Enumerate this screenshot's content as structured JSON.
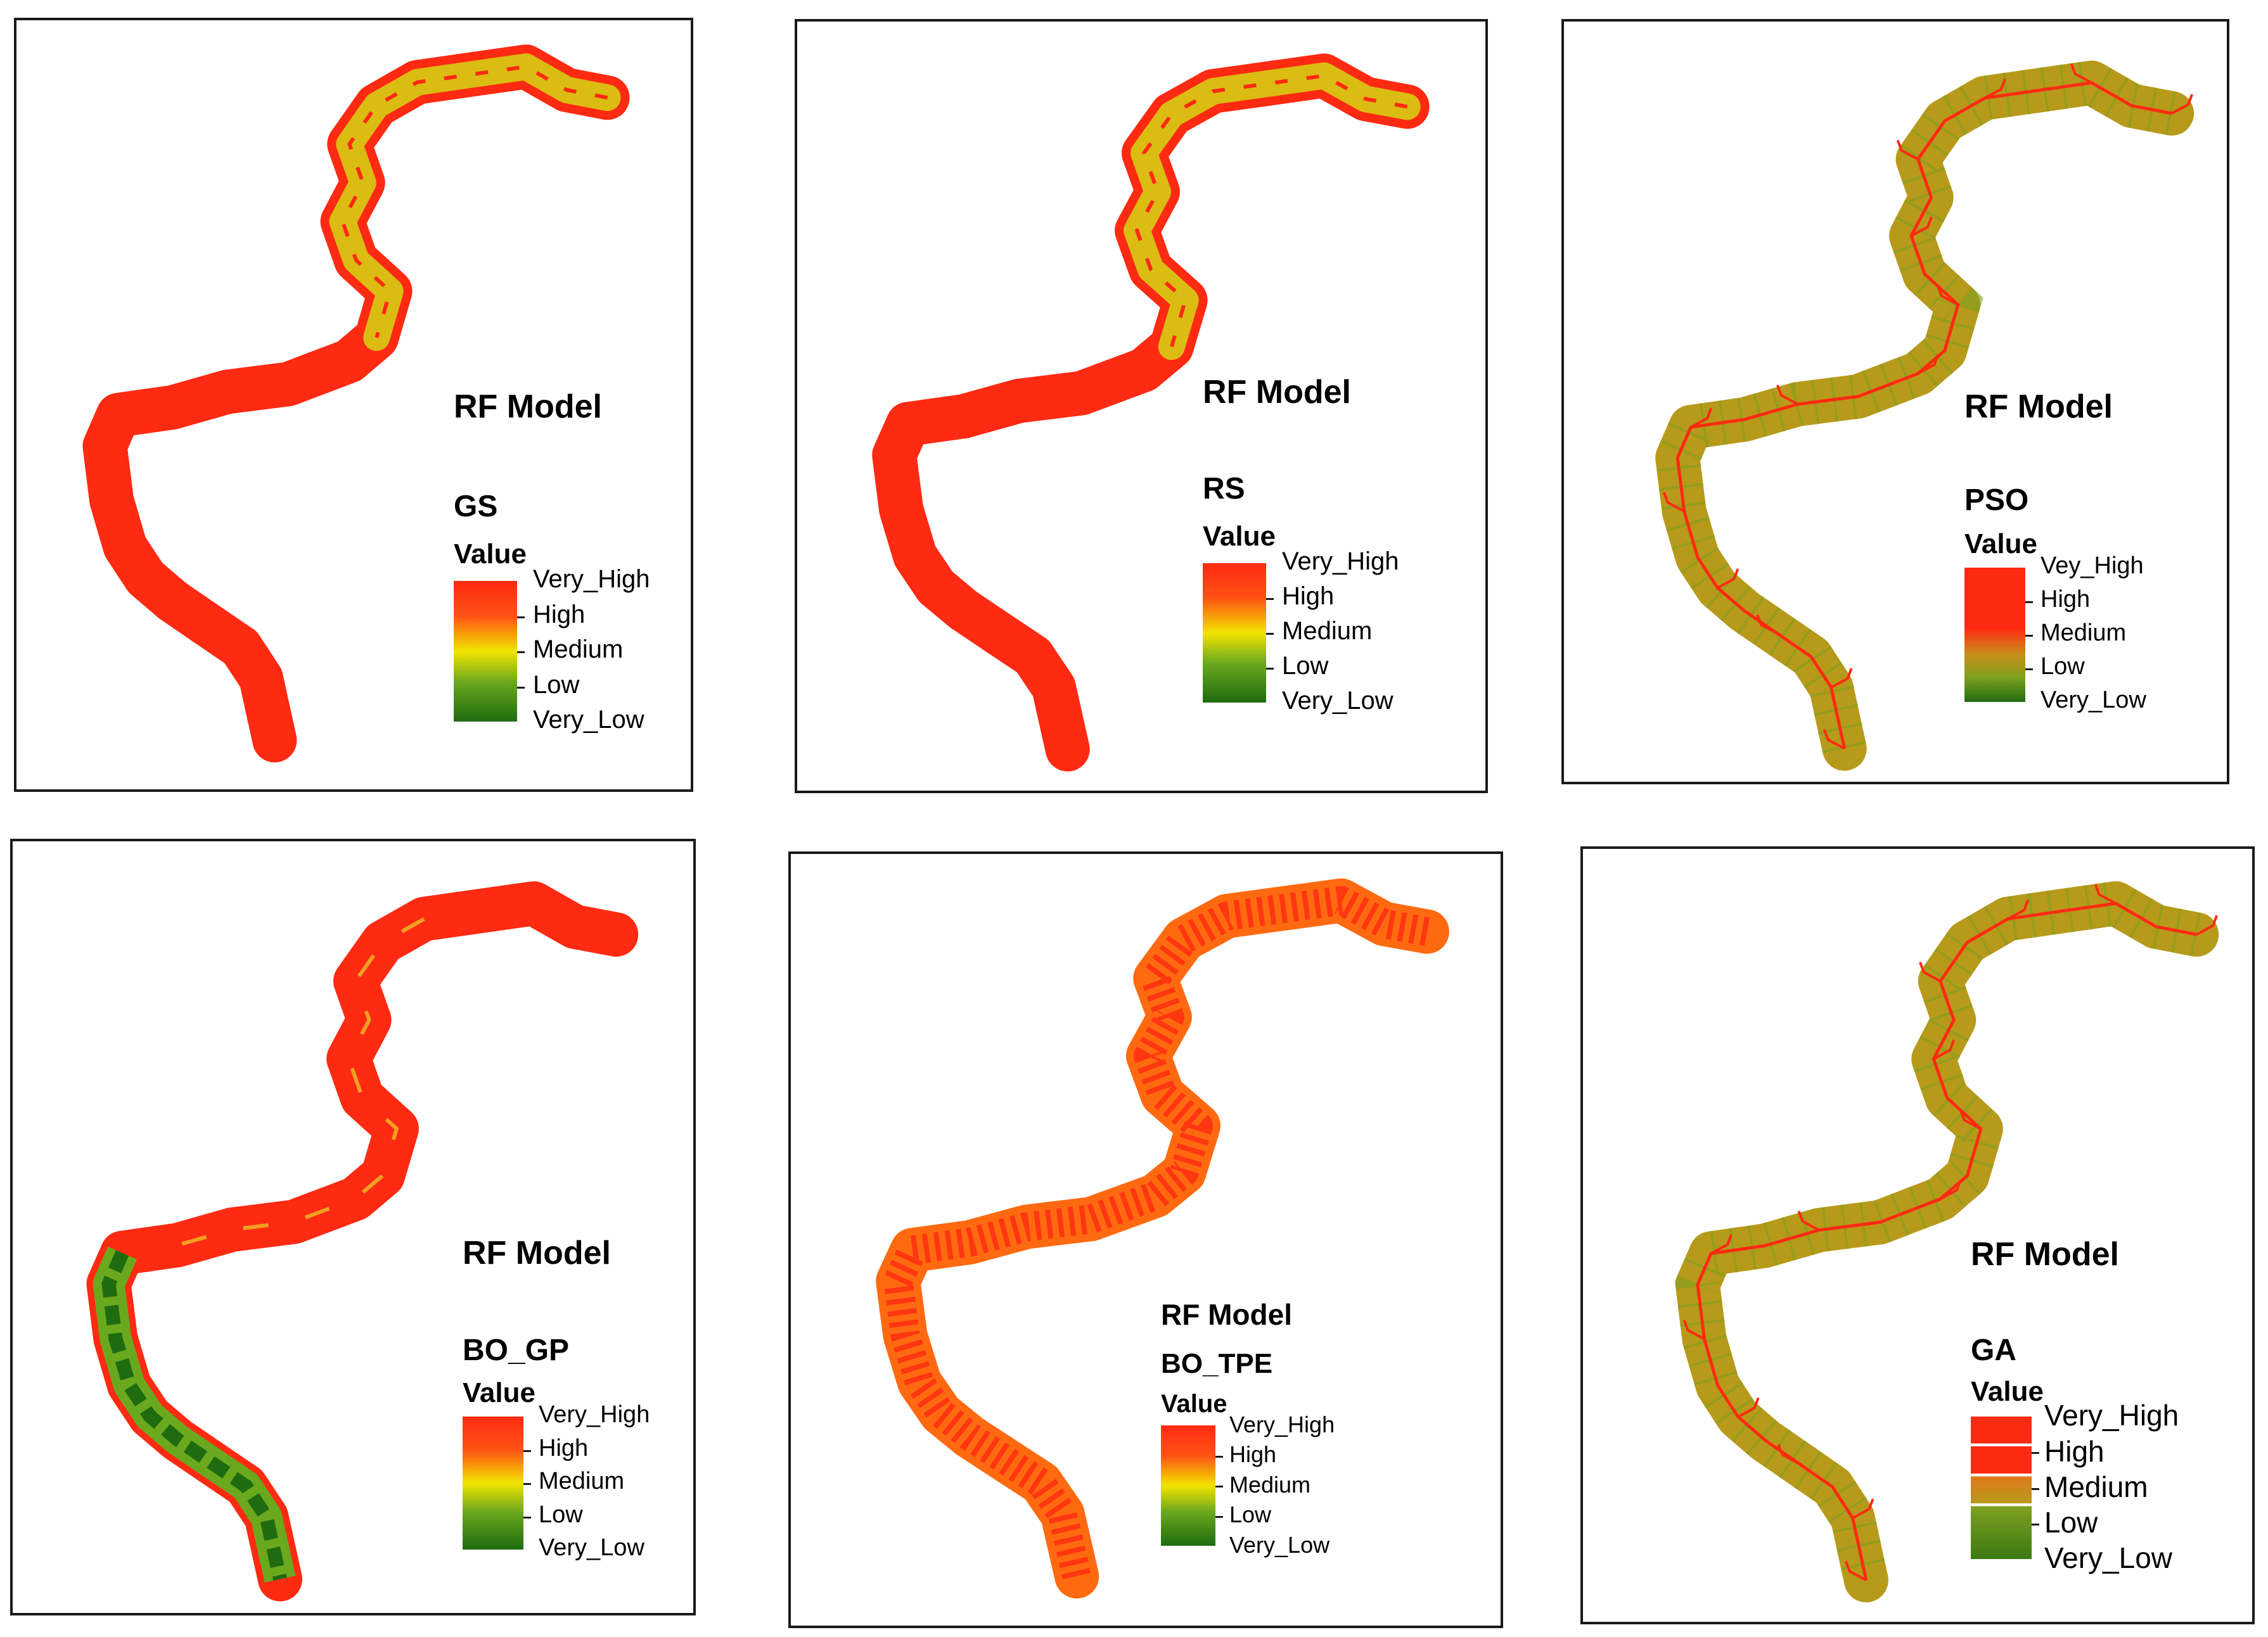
{
  "colors": {
    "very_high": "#ff2a12",
    "high": "#ff6a10",
    "medium": "#f2e400",
    "low": "#6aa81e",
    "very_low": "#1f6b10",
    "olive": "#b79a1a"
  },
  "panels": [
    {
      "id": "gs",
      "model_title": "RF Model",
      "method": "GS",
      "value_head": "Value",
      "legend": [
        "Very_High",
        "High",
        "Medium",
        "Low",
        "Very_Low"
      ],
      "scheme": "red-yellow",
      "ramp_style": "ramp"
    },
    {
      "id": "rs",
      "model_title": "RF Model",
      "method": "RS",
      "value_head": "Value",
      "legend": [
        "Very_High",
        "High",
        "Medium",
        "Low",
        "Very_Low"
      ],
      "scheme": "red-yellow",
      "ramp_style": "ramp"
    },
    {
      "id": "pso",
      "model_title": "RF Model",
      "method": "PSO",
      "value_head": "Value",
      "legend": [
        "Vey_High",
        "High",
        "Medium",
        "Low",
        "Very_Low"
      ],
      "scheme": "olive-network",
      "ramp_style": "ramp"
    },
    {
      "id": "bo_gp",
      "model_title": "RF Model",
      "method": "BO_GP",
      "value_head": "Value",
      "legend": [
        "Very_High",
        "High",
        "Medium",
        "Low",
        "Very_Low"
      ],
      "scheme": "red-green-south",
      "ramp_style": "ramp"
    },
    {
      "id": "bo_tpe",
      "model_title": "RF Model",
      "method": "BO_TPE",
      "value_head": "Value",
      "legend": [
        "Very_High",
        "High",
        "Medium",
        "Low",
        "Very_Low"
      ],
      "scheme": "red-orange",
      "ramp_style": "ramp"
    },
    {
      "id": "ga",
      "model_title": "RF Model",
      "method": "GA",
      "value_head": "Value",
      "legend": [
        "Very_High",
        "High",
        "Medium",
        "Low",
        "Very_Low"
      ],
      "scheme": "olive-network",
      "ramp_style": "blocks"
    }
  ]
}
